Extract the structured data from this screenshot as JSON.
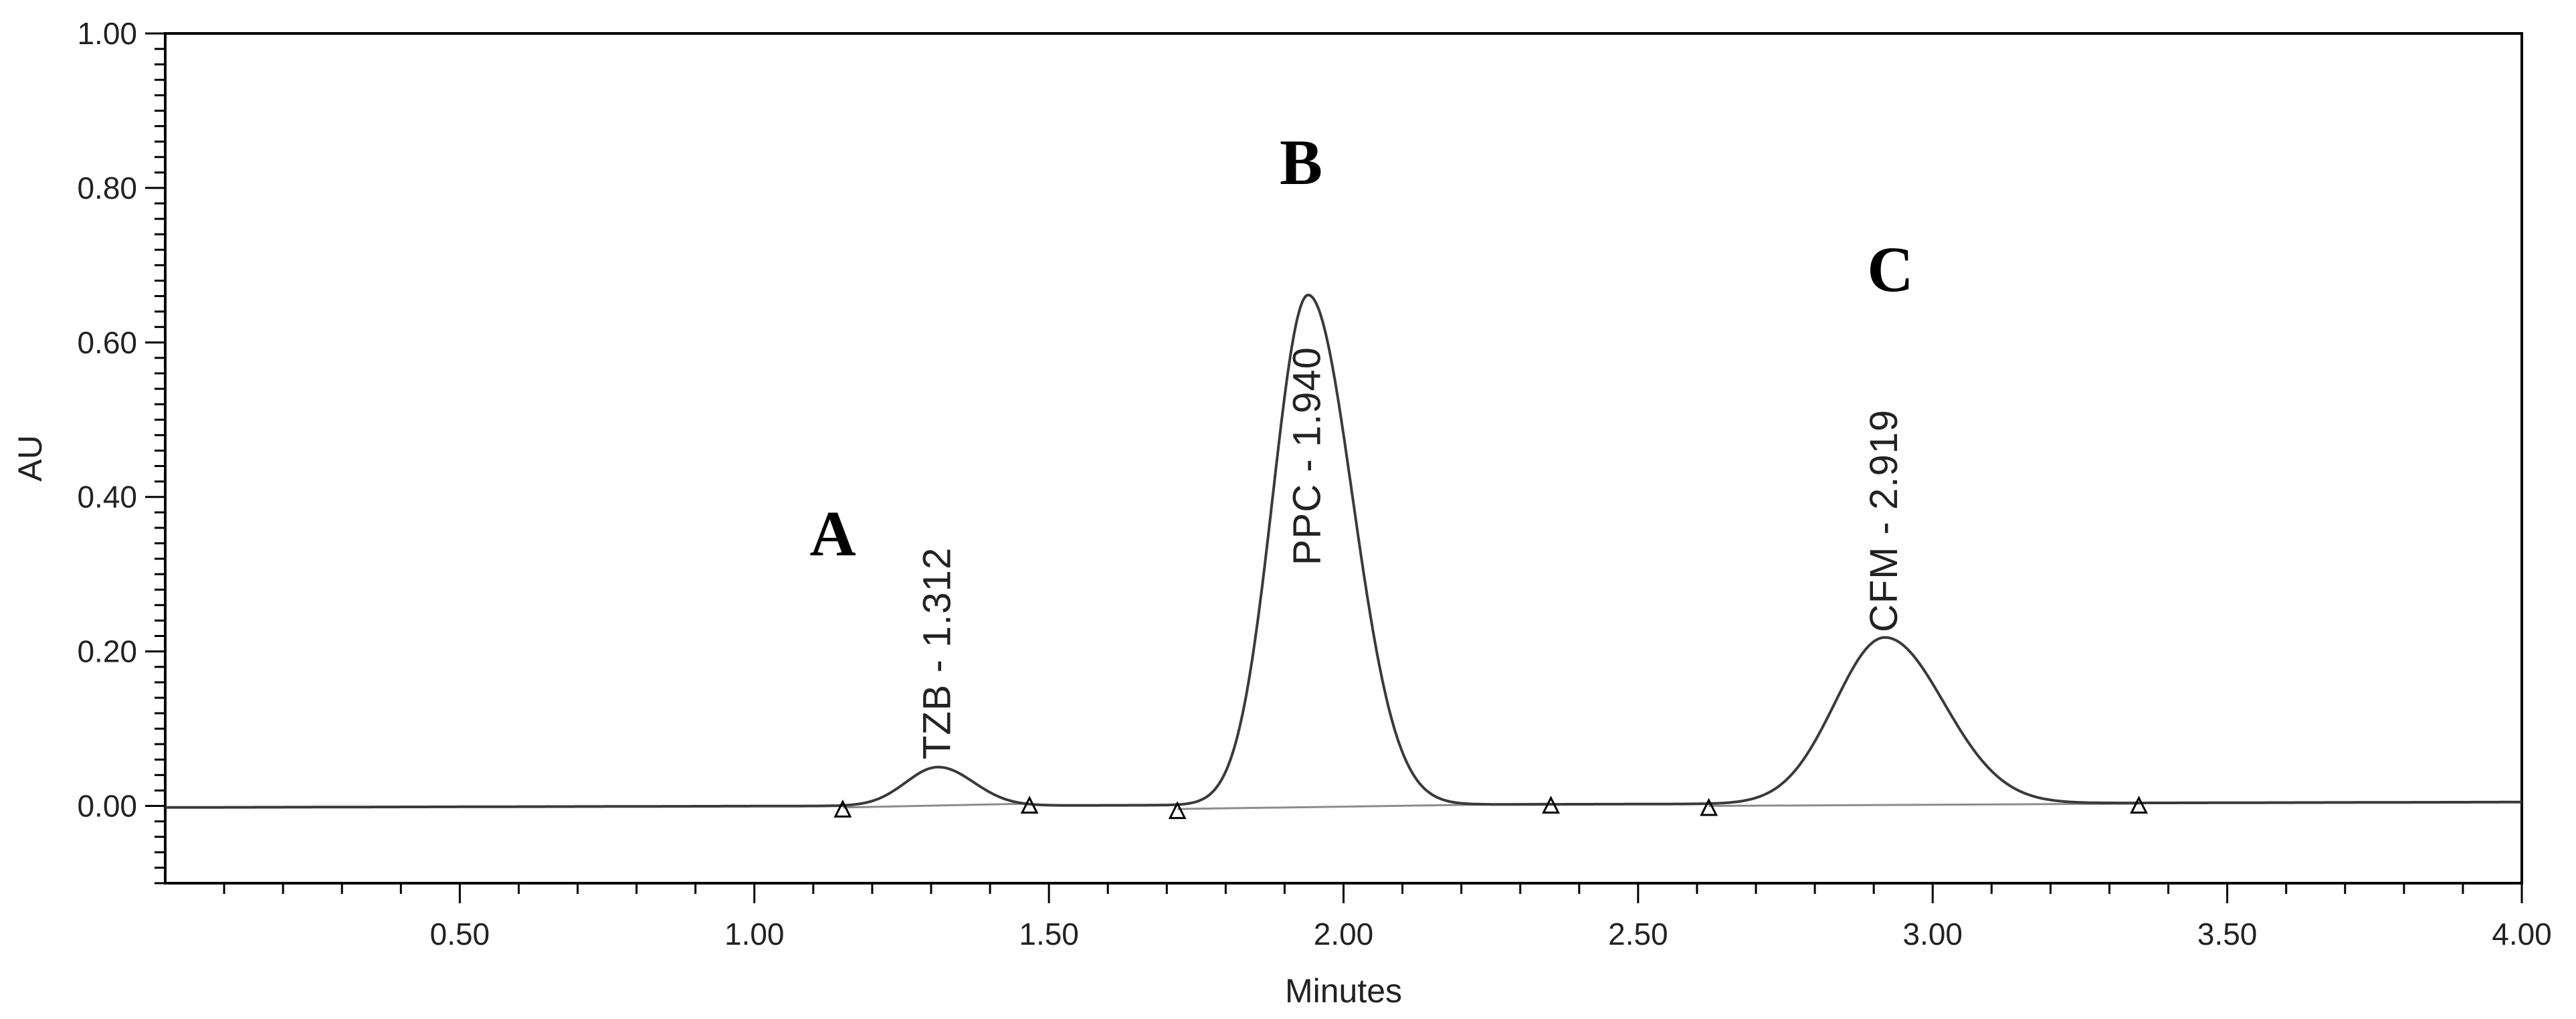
{
  "chart_data": {
    "type": "line",
    "title": "",
    "xlabel": "Minutes",
    "ylabel": "AU",
    "xlim": [
      0.0,
      4.0
    ],
    "ylim": [
      -0.1,
      1.0
    ],
    "x_ticks": [
      0.5,
      1.0,
      1.5,
      2.0,
      2.5,
      3.0,
      3.5,
      4.0
    ],
    "x_tick_labels": [
      "0.50",
      "1.00",
      "1.50",
      "2.00",
      "2.50",
      "3.00",
      "3.50",
      "4.00"
    ],
    "y_ticks": [
      0.0,
      0.2,
      0.4,
      0.6,
      0.8,
      1.0
    ],
    "y_tick_labels": [
      "0.00",
      "0.20",
      "0.40",
      "0.60",
      "0.80",
      "1.00"
    ],
    "grid": false,
    "legend": "none",
    "baseline": {
      "start_value": -0.002,
      "end_value": 0.005
    },
    "peaks": [
      {
        "label": "TZB - 1.312",
        "letter": "A",
        "retention_time": 1.312,
        "height": 0.05,
        "sigma_left": 0.055,
        "sigma_right": 0.06,
        "tail": 0.004
      },
      {
        "label": "PPC - 1.940",
        "letter": "B",
        "retention_time": 1.94,
        "height": 0.66,
        "sigma_left": 0.06,
        "sigma_right": 0.075,
        "tail": 0.004
      },
      {
        "label": "CFM - 2.919",
        "letter": "C",
        "retention_time": 2.919,
        "height": 0.215,
        "sigma_left": 0.085,
        "sigma_right": 0.1,
        "tail": 0.004
      }
    ],
    "integration_marks": [
      {
        "x": 1.15,
        "y": -0.005
      },
      {
        "x": 1.467,
        "y": 0.0
      },
      {
        "x": 1.718,
        "y": -0.007
      },
      {
        "x": 2.352,
        "y": 0.0
      },
      {
        "x": 2.62,
        "y": -0.003
      },
      {
        "x": 3.35,
        "y": 0.0
      }
    ],
    "colors": {
      "trace": "#3a3a3a",
      "axis": "#000000",
      "baseline": "#8c8c8c"
    }
  }
}
